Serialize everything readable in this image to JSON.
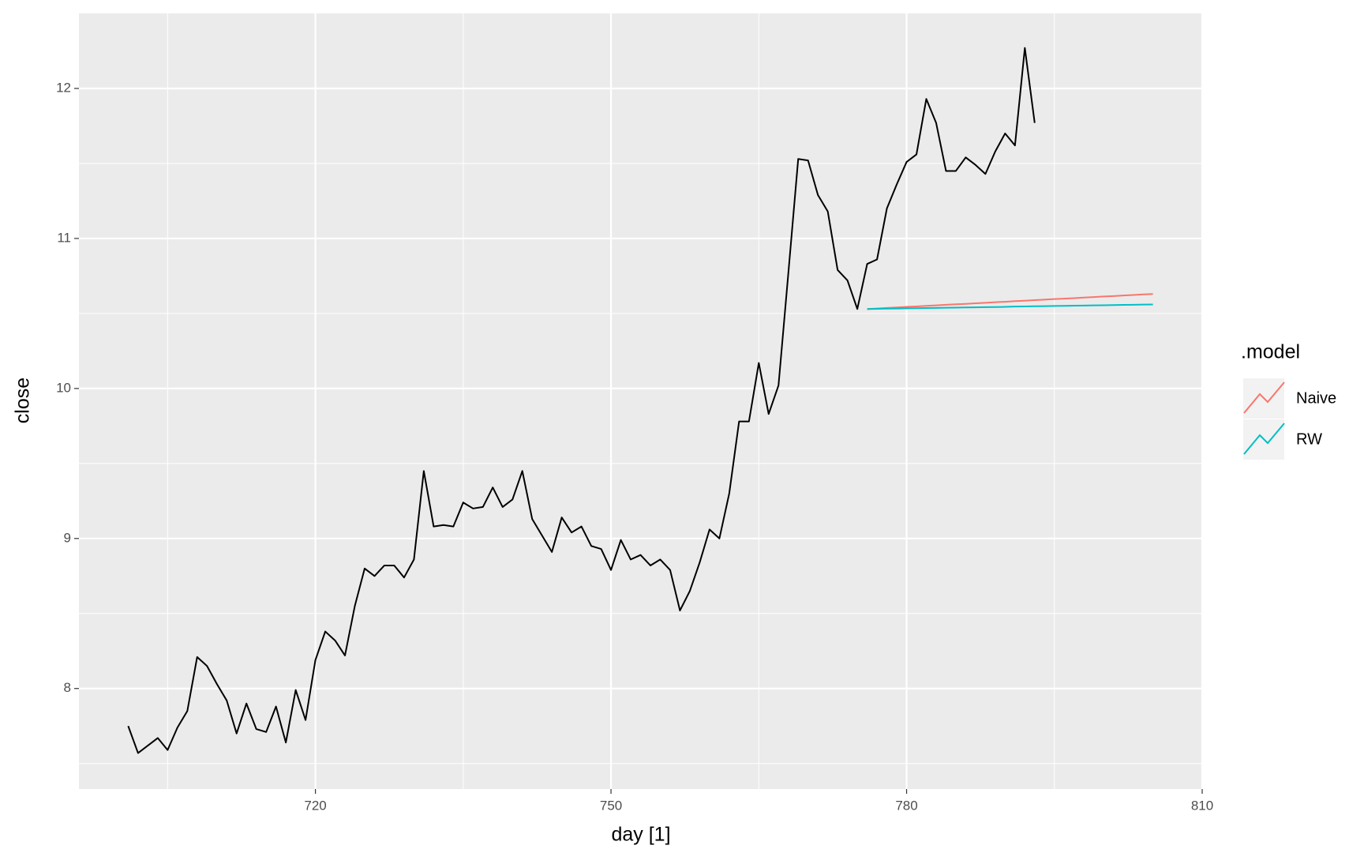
{
  "chart_data": {
    "type": "line",
    "x_label": "day [1]",
    "y_label": "close",
    "legend_title": ".model",
    "xlim": [
      696,
      810
    ],
    "ylim": [
      7.33,
      12.5
    ],
    "xticks": [
      720,
      750,
      780,
      810
    ],
    "yticks": [
      8,
      9,
      10,
      11,
      12
    ],
    "xminor": [
      705,
      735,
      765,
      795
    ],
    "yminor": [
      7.5,
      8.5,
      9.5,
      10.5,
      11.5
    ],
    "grid": true,
    "history": {
      "color": "#000000",
      "x": [
        701,
        702,
        703,
        704,
        705,
        706,
        707,
        708,
        709,
        710,
        711,
        712,
        713,
        714,
        715,
        716,
        717,
        718,
        719,
        720,
        721,
        722,
        723,
        724,
        725,
        726,
        727,
        728,
        729,
        730,
        731,
        732,
        733,
        734,
        735,
        736,
        737,
        738,
        739,
        740,
        741,
        742,
        743,
        744,
        745,
        746,
        747,
        748,
        749,
        750,
        751,
        752,
        753,
        754,
        755,
        756,
        757,
        758,
        759,
        760,
        761,
        762,
        763,
        764,
        765,
        766,
        767,
        768,
        769,
        770,
        771,
        772,
        773,
        774,
        775,
        776,
        777,
        778,
        779,
        780,
        781,
        782,
        783,
        784,
        785,
        786,
        787,
        788,
        789,
        790,
        791,
        792,
        793
      ],
      "values": [
        7.75,
        7.57,
        7.62,
        7.67,
        7.59,
        7.74,
        7.85,
        8.21,
        8.15,
        8.03,
        7.92,
        7.7,
        7.9,
        7.73,
        7.71,
        7.88,
        7.64,
        7.99,
        7.79,
        8.19,
        8.38,
        8.32,
        8.22,
        8.55,
        8.8,
        8.75,
        8.82,
        8.82,
        8.74,
        8.86,
        9.45,
        9.08,
        9.09,
        9.08,
        9.24,
        9.2,
        9.21,
        9.34,
        9.21,
        9.26,
        9.45,
        9.13,
        9.02,
        8.91,
        9.14,
        9.04,
        9.08,
        8.95,
        8.93,
        8.79,
        8.99,
        8.86,
        8.89,
        8.82,
        8.86,
        8.79,
        8.52,
        8.65,
        8.84,
        9.06,
        9.0,
        9.3,
        9.78,
        9.78,
        10.17,
        9.83,
        10.02,
        10.77,
        11.53,
        11.52,
        11.29,
        11.18,
        10.79,
        10.72,
        10.53,
        10.83,
        10.86,
        11.2,
        11.36,
        11.51,
        11.56,
        11.93,
        11.77,
        11.45,
        11.45,
        11.54,
        11.49,
        11.43,
        11.58,
        11.7,
        11.62,
        12.27,
        11.77
      ]
    },
    "series": [
      {
        "name": "Naive",
        "color": "#f8766d",
        "x": [
          776,
          777,
          778,
          779,
          780,
          781,
          782,
          783,
          784,
          785,
          786,
          787,
          788,
          789,
          790,
          791,
          792,
          793,
          794,
          795,
          796,
          797,
          798,
          799,
          800,
          801,
          802,
          803,
          804,
          805
        ],
        "values": [
          10.53,
          10.533,
          10.537,
          10.54,
          10.544,
          10.547,
          10.551,
          10.554,
          10.558,
          10.561,
          10.564,
          10.568,
          10.571,
          10.575,
          10.578,
          10.582,
          10.585,
          10.589,
          10.592,
          10.596,
          10.599,
          10.602,
          10.606,
          10.609,
          10.613,
          10.616,
          10.62,
          10.623,
          10.627,
          10.63
        ]
      },
      {
        "name": "RW",
        "color": "#00bfc4",
        "x": [
          776,
          777,
          778,
          779,
          780,
          781,
          782,
          783,
          784,
          785,
          786,
          787,
          788,
          789,
          790,
          791,
          792,
          793,
          794,
          795,
          796,
          797,
          798,
          799,
          800,
          801,
          802,
          803,
          804,
          805
        ],
        "values": [
          10.53,
          10.531,
          10.532,
          10.533,
          10.534,
          10.535,
          10.536,
          10.537,
          10.538,
          10.539,
          10.54,
          10.541,
          10.542,
          10.543,
          10.544,
          10.546,
          10.547,
          10.548,
          10.549,
          10.55,
          10.551,
          10.552,
          10.553,
          10.554,
          10.555,
          10.556,
          10.557,
          10.558,
          10.559,
          10.56
        ]
      }
    ]
  }
}
